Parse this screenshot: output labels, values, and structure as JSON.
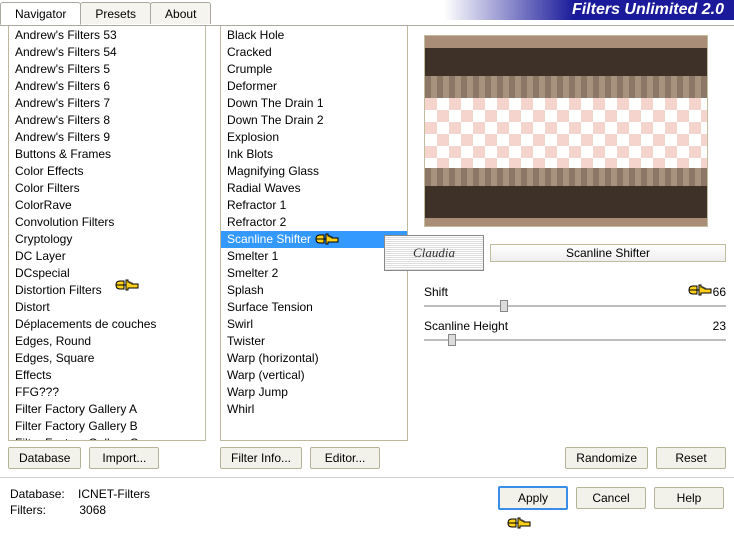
{
  "app": {
    "title": "Filters Unlimited 2.0"
  },
  "tabs": [
    {
      "label": "Navigator",
      "active": true
    },
    {
      "label": "Presets",
      "active": false
    },
    {
      "label": "About",
      "active": false
    }
  ],
  "left_list": {
    "items": [
      "Andrew's Filters 53",
      "Andrew's Filters 54",
      "Andrew's Filters 5",
      "Andrew's Filters 6",
      "Andrew's Filters 7",
      "Andrew's Filters 8",
      "Andrew's Filters 9",
      "Buttons & Frames",
      "Color Effects",
      "Color Filters",
      "ColorRave",
      "Convolution Filters",
      "Cryptology",
      "DC Layer",
      "DCspecial",
      "Distortion Filters",
      "Distort",
      "Déplacements de couches",
      "Edges, Round",
      "Edges, Square",
      "Effects",
      "FFG???",
      "Filter Factory Gallery A",
      "Filter Factory Gallery B",
      "Filter Factory Gallery C"
    ],
    "highlight_index": 15
  },
  "mid_list": {
    "items": [
      "Black Hole",
      "Cracked",
      "Crumple",
      "Deformer",
      "Down The Drain 1",
      "Down The Drain 2",
      "Explosion",
      "Ink Blots",
      "Magnifying Glass",
      "Radial Waves",
      "Refractor 1",
      "Refractor 2",
      "Scanline Shifter",
      "Smelter 1",
      "Smelter 2",
      "Splash",
      "Surface Tension",
      "Swirl",
      "Twister",
      "Warp (horizontal)",
      "Warp (vertical)",
      "Warp Jump",
      "Whirl"
    ],
    "selected_index": 12
  },
  "filter_panel": {
    "watermark": "Claudia",
    "current_filter": "Scanline Shifter",
    "params": [
      {
        "label": "Shift",
        "value": 66,
        "max": 255
      },
      {
        "label": "Scanline Height",
        "value": 23,
        "max": 255
      }
    ]
  },
  "buttons": {
    "left_row": [
      "Database",
      "Import..."
    ],
    "mid_row": [
      "Filter Info...",
      "Editor..."
    ],
    "right_row": [
      "Randomize",
      "Reset"
    ],
    "footer": {
      "apply": "Apply",
      "cancel": "Cancel",
      "help": "Help"
    }
  },
  "footer_info": {
    "db_label": "Database:",
    "db_value": "ICNET-Filters",
    "filters_label": "Filters:",
    "filters_value": "3068"
  },
  "colors": {
    "selection_bg": "#3399ff",
    "title_gradient_end": "#1a1a9a",
    "border": "#bcb99e",
    "preview_bg": "#aa8d77",
    "preview_dark": "#3e3128",
    "checker_pink": "#f5d4ce",
    "pointer_fill": "#ffd11a",
    "pointer_stroke": "#000000"
  }
}
